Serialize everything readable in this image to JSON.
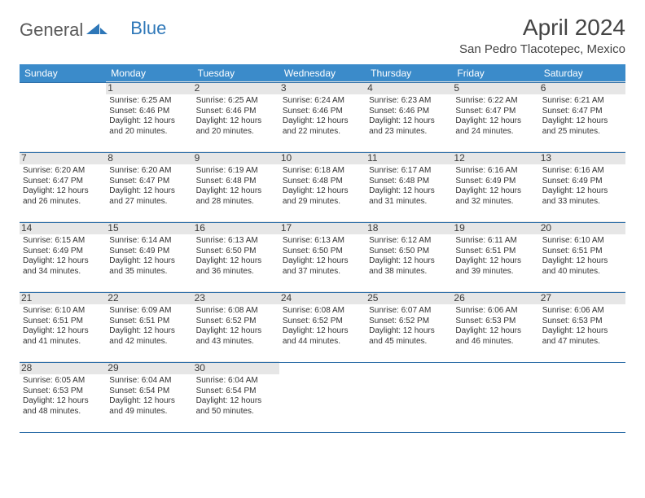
{
  "brand": {
    "part1": "General",
    "part2": "Blue"
  },
  "title": "April 2024",
  "location": "San Pedro Tlacotepec, Mexico",
  "style": {
    "header_bg": "#3b8bca",
    "header_fg": "#ffffff",
    "border_color": "#2f6fa8",
    "shade_bg": "#f2f2f2",
    "text_color": "#333333",
    "title_fontsize": 28,
    "location_fontsize": 15,
    "dayhead_fontsize": 12,
    "body_fontsize": 10
  },
  "day_headers": [
    "Sunday",
    "Monday",
    "Tuesday",
    "Wednesday",
    "Thursday",
    "Friday",
    "Saturday"
  ],
  "weeks": [
    [
      null,
      {
        "n": "1",
        "sr": "6:25 AM",
        "ss": "6:46 PM",
        "dl": "12 hours and 20 minutes."
      },
      {
        "n": "2",
        "sr": "6:25 AM",
        "ss": "6:46 PM",
        "dl": "12 hours and 20 minutes."
      },
      {
        "n": "3",
        "sr": "6:24 AM",
        "ss": "6:46 PM",
        "dl": "12 hours and 22 minutes."
      },
      {
        "n": "4",
        "sr": "6:23 AM",
        "ss": "6:46 PM",
        "dl": "12 hours and 23 minutes."
      },
      {
        "n": "5",
        "sr": "6:22 AM",
        "ss": "6:47 PM",
        "dl": "12 hours and 24 minutes."
      },
      {
        "n": "6",
        "sr": "6:21 AM",
        "ss": "6:47 PM",
        "dl": "12 hours and 25 minutes."
      }
    ],
    [
      {
        "n": "7",
        "sr": "6:20 AM",
        "ss": "6:47 PM",
        "dl": "12 hours and 26 minutes."
      },
      {
        "n": "8",
        "sr": "6:20 AM",
        "ss": "6:47 PM",
        "dl": "12 hours and 27 minutes."
      },
      {
        "n": "9",
        "sr": "6:19 AM",
        "ss": "6:48 PM",
        "dl": "12 hours and 28 minutes."
      },
      {
        "n": "10",
        "sr": "6:18 AM",
        "ss": "6:48 PM",
        "dl": "12 hours and 29 minutes."
      },
      {
        "n": "11",
        "sr": "6:17 AM",
        "ss": "6:48 PM",
        "dl": "12 hours and 31 minutes."
      },
      {
        "n": "12",
        "sr": "6:16 AM",
        "ss": "6:49 PM",
        "dl": "12 hours and 32 minutes."
      },
      {
        "n": "13",
        "sr": "6:16 AM",
        "ss": "6:49 PM",
        "dl": "12 hours and 33 minutes."
      }
    ],
    [
      {
        "n": "14",
        "sr": "6:15 AM",
        "ss": "6:49 PM",
        "dl": "12 hours and 34 minutes."
      },
      {
        "n": "15",
        "sr": "6:14 AM",
        "ss": "6:49 PM",
        "dl": "12 hours and 35 minutes."
      },
      {
        "n": "16",
        "sr": "6:13 AM",
        "ss": "6:50 PM",
        "dl": "12 hours and 36 minutes."
      },
      {
        "n": "17",
        "sr": "6:13 AM",
        "ss": "6:50 PM",
        "dl": "12 hours and 37 minutes."
      },
      {
        "n": "18",
        "sr": "6:12 AM",
        "ss": "6:50 PM",
        "dl": "12 hours and 38 minutes."
      },
      {
        "n": "19",
        "sr": "6:11 AM",
        "ss": "6:51 PM",
        "dl": "12 hours and 39 minutes."
      },
      {
        "n": "20",
        "sr": "6:10 AM",
        "ss": "6:51 PM",
        "dl": "12 hours and 40 minutes."
      }
    ],
    [
      {
        "n": "21",
        "sr": "6:10 AM",
        "ss": "6:51 PM",
        "dl": "12 hours and 41 minutes."
      },
      {
        "n": "22",
        "sr": "6:09 AM",
        "ss": "6:51 PM",
        "dl": "12 hours and 42 minutes."
      },
      {
        "n": "23",
        "sr": "6:08 AM",
        "ss": "6:52 PM",
        "dl": "12 hours and 43 minutes."
      },
      {
        "n": "24",
        "sr": "6:08 AM",
        "ss": "6:52 PM",
        "dl": "12 hours and 44 minutes."
      },
      {
        "n": "25",
        "sr": "6:07 AM",
        "ss": "6:52 PM",
        "dl": "12 hours and 45 minutes."
      },
      {
        "n": "26",
        "sr": "6:06 AM",
        "ss": "6:53 PM",
        "dl": "12 hours and 46 minutes."
      },
      {
        "n": "27",
        "sr": "6:06 AM",
        "ss": "6:53 PM",
        "dl": "12 hours and 47 minutes."
      }
    ],
    [
      {
        "n": "28",
        "sr": "6:05 AM",
        "ss": "6:53 PM",
        "dl": "12 hours and 48 minutes."
      },
      {
        "n": "29",
        "sr": "6:04 AM",
        "ss": "6:54 PM",
        "dl": "12 hours and 49 minutes."
      },
      {
        "n": "30",
        "sr": "6:04 AM",
        "ss": "6:54 PM",
        "dl": "12 hours and 50 minutes."
      },
      null,
      null,
      null,
      null
    ]
  ],
  "labels": {
    "sunrise": "Sunrise:",
    "sunset": "Sunset:",
    "daylight": "Daylight:"
  }
}
